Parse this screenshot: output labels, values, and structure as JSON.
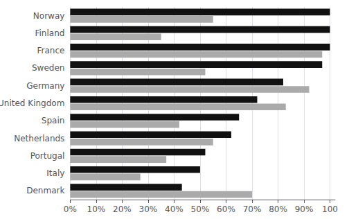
{
  "chart_data": {
    "type": "bar",
    "orientation": "horizontal",
    "categories": [
      "Norway",
      "Finland",
      "France",
      "Sweden",
      "Germany",
      "United Kingdom",
      "Spain",
      "Netherlands",
      "Portugal",
      "Italy",
      "Denmark"
    ],
    "series": [
      {
        "color": "#111111",
        "values": [
          100,
          100,
          100,
          97,
          82,
          72,
          65,
          62,
          52,
          50,
          43
        ]
      },
      {
        "color": "#aaaaaa",
        "values": [
          55,
          35,
          97,
          52,
          92,
          83,
          42,
          55,
          37,
          27,
          70
        ]
      }
    ],
    "xlim": [
      0,
      102
    ],
    "xticks": [
      {
        "value": 0,
        "label": "0%"
      },
      {
        "value": 10,
        "label": "10%"
      },
      {
        "value": 20,
        "label": "20%"
      },
      {
        "value": 30,
        "label": "30%"
      },
      {
        "value": 40,
        "label": "40%"
      },
      {
        "value": 50,
        "label": "50%"
      },
      {
        "value": 60,
        "label": "60%"
      },
      {
        "value": 70,
        "label": "70%"
      },
      {
        "value": 80,
        "label": "80%"
      },
      {
        "value": 90,
        "label": "90%"
      },
      100
    ],
    "grid": true
  }
}
